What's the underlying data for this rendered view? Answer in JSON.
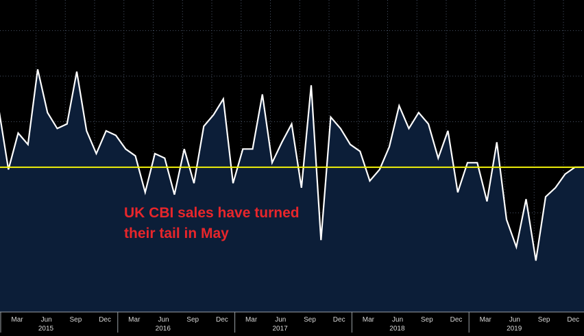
{
  "chart_data": {
    "type": "area",
    "title": "",
    "xlabel": "",
    "ylabel": "",
    "grid": true,
    "colors": {
      "background": "#000000",
      "area_fill": "#0c1e38",
      "line": "#ffffff",
      "reference_line": "#f2f20a",
      "gridline": "#4a5568",
      "annotation": "#e8262b",
      "tick_label": "#d8d8d8"
    },
    "annotation": [
      "UK CBI sales have turned",
      "their tail in May"
    ],
    "x_axis": {
      "month_ticks": [
        "Mar",
        "Jun",
        "Sep",
        "Dec",
        "Mar",
        "Jun",
        "Sep",
        "Dec",
        "Mar",
        "Jun",
        "Sep",
        "Dec",
        "Mar",
        "Jun",
        "Sep",
        "Dec",
        "Mar",
        "Jun",
        "Sep",
        "Dec"
      ],
      "year_labels": [
        "2015",
        "2016",
        "2017",
        "2018",
        "2019"
      ]
    },
    "ylim": [
      -50,
      65
    ],
    "reference_value": 0,
    "series": [
      {
        "values": [
          26,
          -1,
          15,
          10,
          43,
          24,
          17,
          19,
          42,
          16,
          6,
          16,
          14,
          8,
          5,
          -11,
          6,
          4,
          -12,
          8,
          -7,
          18,
          23,
          30,
          -7,
          8,
          8,
          32,
          2,
          11,
          19,
          -9,
          36,
          -32,
          22,
          17,
          10,
          7,
          -6,
          -1,
          9,
          27,
          17,
          24,
          19,
          4,
          16,
          -11,
          2,
          2,
          -15,
          11,
          -23,
          -35,
          -14,
          -41,
          -13,
          -9,
          -3,
          0
        ]
      }
    ]
  }
}
